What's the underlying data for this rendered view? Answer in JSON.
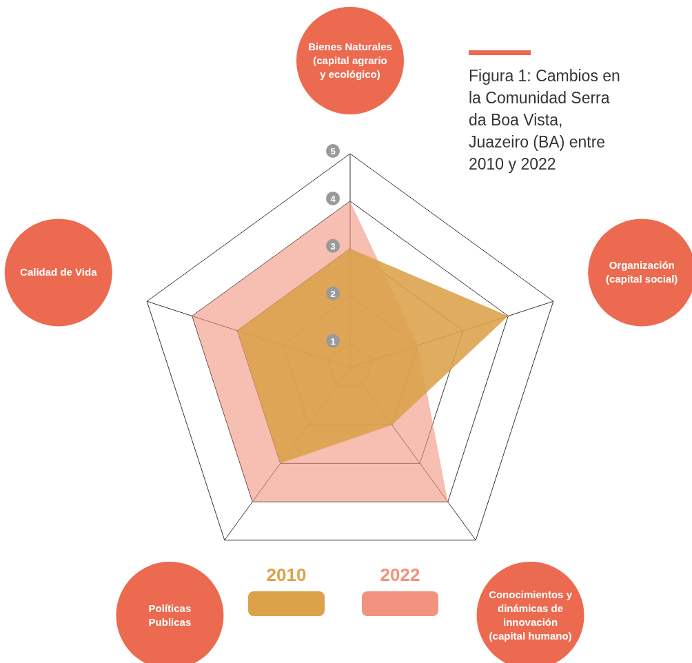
{
  "chart_data": {
    "type": "radar",
    "title": "Figura 1: Cambios en la Comunidad Serra da Boa Vista, Juazeiro (BA) entre 2010 y 2022",
    "categories": [
      "Bienes Naturales (capital agrario y ecológico)",
      "Organización (capital social)",
      "Conocimientos y dinámicas de innovación (capital humano)",
      "Políticas Publicas",
      "Calidad de Vida"
    ],
    "series": [
      {
        "name": "2010",
        "color": "#dca24a",
        "values": [
          3,
          4,
          2,
          3,
          3
        ]
      },
      {
        "name": "2022",
        "color": "#f2937f",
        "values": [
          4,
          2,
          4,
          4,
          4
        ]
      }
    ],
    "ylim": [
      0.5,
      5
    ],
    "yticks": [
      1,
      2,
      3,
      4,
      5
    ],
    "grid": true,
    "legend": "bottom"
  }
}
